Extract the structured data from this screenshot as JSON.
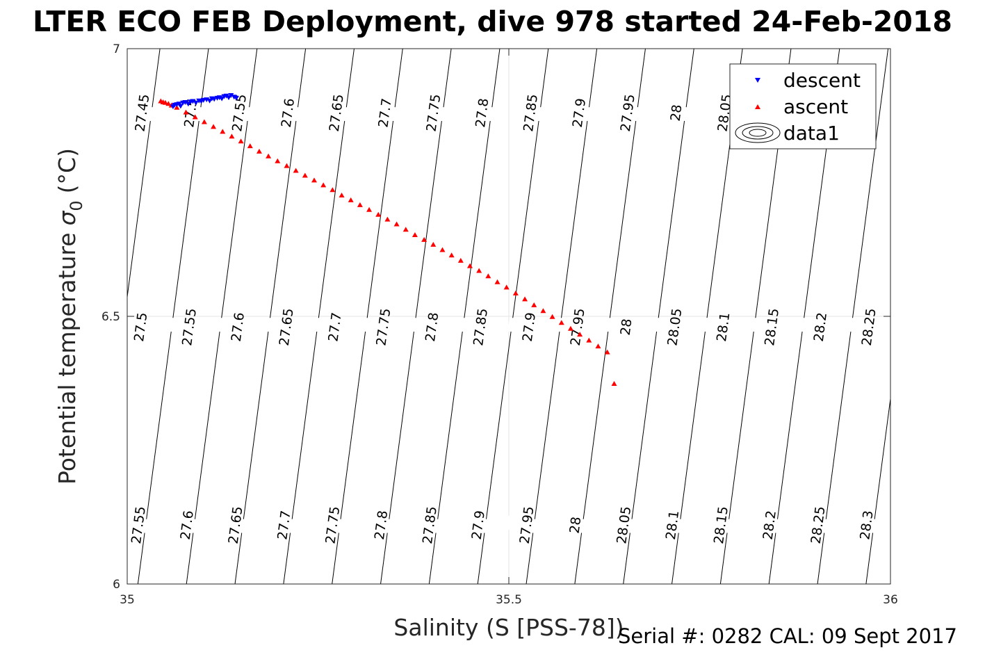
{
  "chart_data": {
    "type": "scatter",
    "title": "LTER ECO FEB Deployment, dive 978 started 24-Feb-2018",
    "xlabel": "Salinity (S [PSS-78])",
    "ylabel_main": "Potential temperature",
    "ylabel_symbol": "σ",
    "ylabel_sub": "0",
    "ylabel_unit": "(°C)",
    "xlim": [
      35,
      36
    ],
    "ylim": [
      6,
      7
    ],
    "xticks": [
      35,
      35.5,
      36
    ],
    "xtick_labels": [
      "35",
      "35.5",
      "36"
    ],
    "yticks": [
      6,
      6.5,
      7
    ],
    "ytick_labels": [
      "6",
      "6.5",
      "7"
    ],
    "grid": true,
    "legend_position": "top-right",
    "legend": [
      {
        "label": "descent",
        "marker": "triangle-down",
        "color": "#0000ff"
      },
      {
        "label": "ascent",
        "marker": "triangle-up",
        "color": "#ff0000"
      },
      {
        "label": "data1",
        "marker": "contour",
        "color": "#000000"
      }
    ],
    "contour_levels": [
      27.45,
      27.5,
      27.55,
      27.6,
      27.65,
      27.7,
      27.75,
      27.8,
      27.85,
      27.9,
      27.95,
      28,
      28.05,
      28.1,
      28.15,
      28.2,
      28.25,
      28.3
    ],
    "contour_labels": {
      "top_row": [
        "27.45",
        "27.5",
        "27.55",
        "27.6",
        "27.65",
        "27.7",
        "27.75",
        "27.8",
        "27.85",
        "27.9",
        "27.95",
        "28",
        "28.05"
      ],
      "middle_row": [
        "27.5",
        "27.55",
        "27.6",
        "27.65",
        "27.7",
        "27.75",
        "27.8",
        "27.85",
        "27.9",
        "27.95",
        "28",
        "28.05",
        "28.1",
        "28.15",
        "28.2",
        "28.25"
      ],
      "bottom_row": [
        "27.55",
        "27.6",
        "27.65",
        "27.7",
        "27.75",
        "27.8",
        "27.85",
        "27.9",
        "27.95",
        "28",
        "28.05",
        "28.1",
        "28.15",
        "28.2",
        "28.25",
        "28.3"
      ]
    },
    "series": [
      {
        "name": "descent",
        "color": "#0000ff",
        "marker": "triangle-down",
        "x": [
          35.06,
          35.062,
          35.065,
          35.068,
          35.07,
          35.073,
          35.076,
          35.08,
          35.083,
          35.086,
          35.09,
          35.094,
          35.097,
          35.1,
          35.104,
          35.108,
          35.111,
          35.114,
          35.118,
          35.121,
          35.124,
          35.127,
          35.13,
          35.133,
          35.136,
          35.14,
          35.143
        ],
        "y": [
          6.892,
          6.895,
          6.896,
          6.897,
          6.893,
          6.899,
          6.9,
          6.897,
          6.901,
          6.902,
          6.899,
          6.903,
          6.902,
          6.904,
          6.905,
          6.903,
          6.907,
          6.906,
          6.908,
          6.909,
          6.907,
          6.911,
          6.912,
          6.909,
          6.913,
          6.91,
          6.908
        ]
      },
      {
        "name": "ascent",
        "color": "#ff0000",
        "marker": "triangle-up",
        "x": [
          35.044,
          35.047,
          35.05,
          35.054,
          35.058,
          35.065,
          35.077,
          35.089,
          35.101,
          35.113,
          35.125,
          35.137,
          35.149,
          35.161,
          35.173,
          35.185,
          35.197,
          35.209,
          35.221,
          35.233,
          35.245,
          35.257,
          35.269,
          35.281,
          35.293,
          35.305,
          35.317,
          35.329,
          35.341,
          35.353,
          35.365,
          35.377,
          35.389,
          35.401,
          35.413,
          35.425,
          35.437,
          35.449,
          35.461,
          35.473,
          35.485,
          35.497,
          35.509,
          35.521,
          35.533,
          35.545,
          35.557,
          35.569,
          35.581,
          35.593,
          35.605,
          35.617,
          35.629,
          35.638
        ],
        "y": [
          6.902,
          6.9,
          6.899,
          6.897,
          6.894,
          6.89,
          6.881,
          6.872,
          6.863,
          6.854,
          6.845,
          6.836,
          6.827,
          6.818,
          6.808,
          6.799,
          6.79,
          6.781,
          6.772,
          6.763,
          6.754,
          6.745,
          6.736,
          6.726,
          6.717,
          6.708,
          6.699,
          6.69,
          6.681,
          6.672,
          6.662,
          6.652,
          6.643,
          6.634,
          6.624,
          6.614,
          6.604,
          6.594,
          6.585,
          6.575,
          6.564,
          6.554,
          6.543,
          6.532,
          6.521,
          6.51,
          6.499,
          6.488,
          6.477,
          6.466,
          6.455,
          6.444,
          6.433,
          6.374
        ]
      }
    ]
  },
  "footer": {
    "serial": "Serial #: 0282  CAL: 09 Sept 2017"
  }
}
